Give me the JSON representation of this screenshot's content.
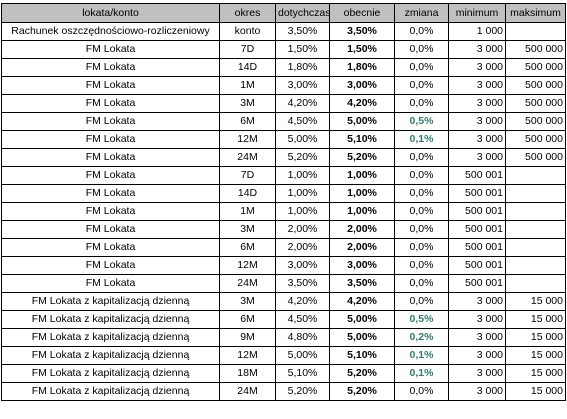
{
  "table": {
    "headers": [
      "lokata/konto",
      "okres",
      "dotychczas",
      "obecnie",
      "zmiana",
      "minimum",
      "maksimum"
    ],
    "rows": [
      {
        "name": "Rachunek oszczędnościowo-rozliczeniowy",
        "period": "konto",
        "previous": "3,50%",
        "current": "3,50%",
        "change": "0,0%",
        "change_up": false,
        "minimum": "1 000",
        "maximum": ""
      },
      {
        "name": "FM Lokata",
        "period": "7D",
        "previous": "1,50%",
        "current": "1,50%",
        "change": "0,0%",
        "change_up": false,
        "minimum": "3 000",
        "maximum": "500 000"
      },
      {
        "name": "FM Lokata",
        "period": "14D",
        "previous": "1,80%",
        "current": "1,80%",
        "change": "0,0%",
        "change_up": false,
        "minimum": "3 000",
        "maximum": "500 000"
      },
      {
        "name": "FM Lokata",
        "period": "1M",
        "previous": "3,00%",
        "current": "3,00%",
        "change": "0,0%",
        "change_up": false,
        "minimum": "3 000",
        "maximum": "500 000"
      },
      {
        "name": "FM Lokata",
        "period": "3M",
        "previous": "4,20%",
        "current": "4,20%",
        "change": "0,0%",
        "change_up": false,
        "minimum": "3 000",
        "maximum": "500 000"
      },
      {
        "name": "FM Lokata",
        "period": "6M",
        "previous": "4,50%",
        "current": "5,00%",
        "change": "0,5%",
        "change_up": true,
        "minimum": "3 000",
        "maximum": "500 000"
      },
      {
        "name": "FM Lokata",
        "period": "12M",
        "previous": "5,00%",
        "current": "5,10%",
        "change": "0,1%",
        "change_up": true,
        "minimum": "3 000",
        "maximum": "500 000"
      },
      {
        "name": "FM Lokata",
        "period": "24M",
        "previous": "5,20%",
        "current": "5,20%",
        "change": "0,0%",
        "change_up": false,
        "minimum": "3 000",
        "maximum": "500 000"
      },
      {
        "name": "FM Lokata",
        "period": "7D",
        "previous": "1,00%",
        "current": "1,00%",
        "change": "0,0%",
        "change_up": false,
        "minimum": "500 001",
        "maximum": ""
      },
      {
        "name": "FM Lokata",
        "period": "14D",
        "previous": "1,00%",
        "current": "1,00%",
        "change": "0,0%",
        "change_up": false,
        "minimum": "500 001",
        "maximum": ""
      },
      {
        "name": "FM Lokata",
        "period": "1M",
        "previous": "1,00%",
        "current": "1,00%",
        "change": "0,0%",
        "change_up": false,
        "minimum": "500 001",
        "maximum": ""
      },
      {
        "name": "FM Lokata",
        "period": "3M",
        "previous": "2,00%",
        "current": "2,00%",
        "change": "0,0%",
        "change_up": false,
        "minimum": "500 001",
        "maximum": ""
      },
      {
        "name": "FM Lokata",
        "period": "6M",
        "previous": "2,00%",
        "current": "2,00%",
        "change": "0,0%",
        "change_up": false,
        "minimum": "500 001",
        "maximum": ""
      },
      {
        "name": "FM Lokata",
        "period": "12M",
        "previous": "3,00%",
        "current": "3,00%",
        "change": "0,0%",
        "change_up": false,
        "minimum": "500 001",
        "maximum": ""
      },
      {
        "name": "FM Lokata",
        "period": "24M",
        "previous": "3,50%",
        "current": "3,50%",
        "change": "0,0%",
        "change_up": false,
        "minimum": "500 001",
        "maximum": ""
      },
      {
        "name": "FM Lokata z kapitalizacją dzienną",
        "period": "3M",
        "previous": "4,20%",
        "current": "4,20%",
        "change": "0,0%",
        "change_up": false,
        "minimum": "3 000",
        "maximum": "15 000"
      },
      {
        "name": "FM Lokata z kapitalizacją dzienną",
        "period": "6M",
        "previous": "4,50%",
        "current": "5,00%",
        "change": "0,5%",
        "change_up": true,
        "minimum": "3 000",
        "maximum": "15 000"
      },
      {
        "name": "FM Lokata z kapitalizacją dzienną",
        "period": "9M",
        "previous": "4,80%",
        "current": "5,00%",
        "change": "0,2%",
        "change_up": true,
        "minimum": "3 000",
        "maximum": "15 000"
      },
      {
        "name": "FM Lokata z kapitalizacją dzienną",
        "period": "12M",
        "previous": "5,00%",
        "current": "5,10%",
        "change": "0,1%",
        "change_up": true,
        "minimum": "3 000",
        "maximum": "15 000"
      },
      {
        "name": "FM Lokata z kapitalizacją dzienną",
        "period": "18M",
        "previous": "5,10%",
        "current": "5,20%",
        "change": "0,1%",
        "change_up": true,
        "minimum": "3 000",
        "maximum": "15 000"
      },
      {
        "name": "FM Lokata z kapitalizacją dzienną",
        "period": "24M",
        "previous": "5,20%",
        "current": "5,20%",
        "change": "0,0%",
        "change_up": false,
        "minimum": "3 000",
        "maximum": "15 000"
      }
    ]
  }
}
